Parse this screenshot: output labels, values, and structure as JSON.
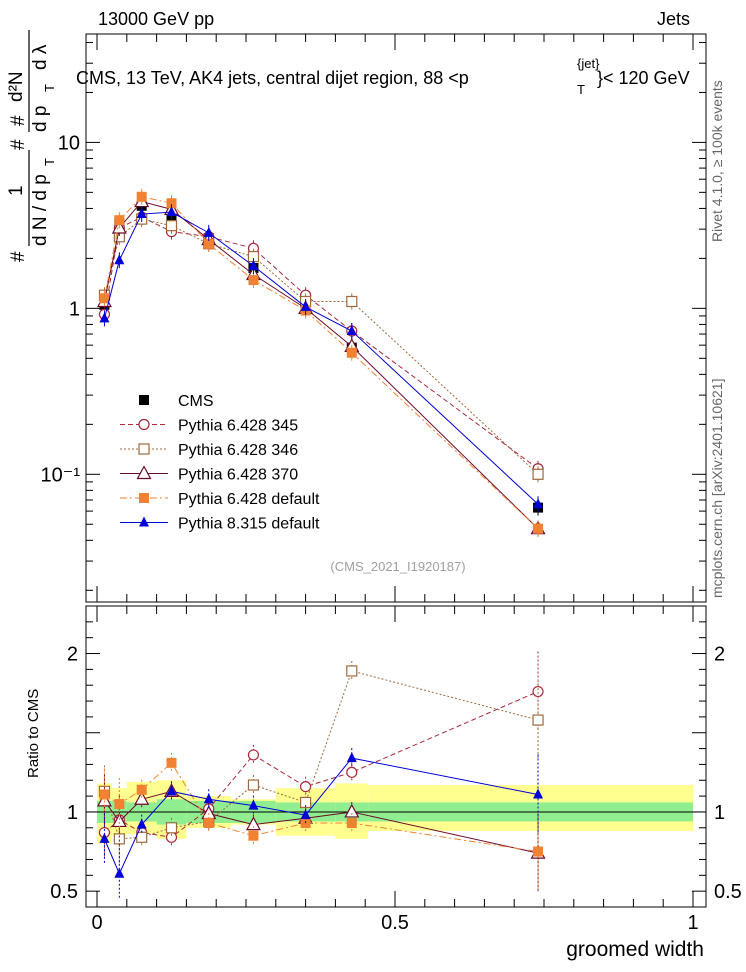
{
  "header": {
    "energy_label": "13000 GeV pp",
    "category_label": "Jets",
    "title_main": "CMS, 13 TeV, AK4 jets, central dijet region, 88 <p",
    "title_sup": "{jet}",
    "title_sub": "T",
    "title_end": "}< 120 GeV",
    "side_rivet": "Rivet 4.1.0, ≥ 100k events",
    "side_site": "mcplots.cern.ch [arXiv:2401.10621]",
    "watermark": "(CMS_2021_I1920187)"
  },
  "ylabel": {
    "hash1": "#",
    "one": "1",
    "dN": "d N / d p",
    "T1": "T",
    "hash2": "#",
    "hash3": "#",
    "d2N": "d²N",
    "dpT": "d p",
    "T2": "T",
    "dlambda": "d λ"
  },
  "chart_data": [
    {
      "type": "line",
      "panel": "main",
      "yscale": "log",
      "xlim": [
        0,
        1
      ],
      "ylim": [
        0.017,
        45
      ],
      "x": [
        0.0125,
        0.0375,
        0.075,
        0.125,
        0.1875,
        0.2625,
        0.35,
        0.4275,
        0.74
      ],
      "yticklabels": [
        "10⁻¹",
        "1",
        "10"
      ],
      "ytick_values": [
        0.1,
        1,
        10
      ],
      "legend": [
        "CMS",
        "Pythia 6.428 345",
        "Pythia 6.428 346",
        "Pythia 6.428 370",
        "Pythia 6.428 default",
        "Pythia 8.315 default"
      ],
      "series": [
        {
          "name": "CMS",
          "color": "#000000",
          "marker": "square-filled",
          "values": [
            1.05,
            3.25,
            4.15,
            3.5,
            2.65,
            1.75,
            1.05,
            0.58,
            0.063
          ]
        },
        {
          "name": "Pythia 6.428 345",
          "color": "#a8283c",
          "marker": "circle-open",
          "values": [
            0.92,
            3.05,
            3.55,
            2.9,
            2.7,
            2.3,
            1.2,
            0.73,
            0.108
          ]
        },
        {
          "name": "Pythia 6.428 346",
          "color": "#a0693c",
          "marker": "square-open",
          "values": [
            1.2,
            2.7,
            3.45,
            3.15,
            2.45,
            2.05,
            1.1,
            1.1,
            0.1
          ]
        },
        {
          "name": "Pythia 6.428 370",
          "color": "#6a0a2a",
          "marker": "triangle-open",
          "values": [
            1.1,
            3.05,
            4.4,
            3.95,
            2.6,
            1.6,
            1.0,
            0.59,
            0.047
          ]
        },
        {
          "name": "Pythia 6.428 default",
          "color": "#f08232",
          "marker": "square-filled",
          "values": [
            1.15,
            3.4,
            4.7,
            4.3,
            2.45,
            1.48,
            0.97,
            0.54,
            0.047
          ]
        },
        {
          "name": "Pythia 8.315 default",
          "color": "#0000d8",
          "marker": "triangle-filled",
          "values": [
            0.87,
            1.95,
            3.7,
            3.8,
            2.85,
            1.8,
            1.02,
            0.73,
            0.066
          ]
        }
      ]
    },
    {
      "type": "line",
      "panel": "ratio",
      "ylabel": "Ratio to CMS",
      "xlabel": "groomed width",
      "xlim": [
        0,
        1
      ],
      "ylim": [
        0.4,
        2.3
      ],
      "xticklabels": [
        "0",
        "0.5",
        "1"
      ],
      "xtick_values": [
        0,
        0.5,
        1
      ],
      "yticklabels": [
        "0.5",
        "1",
        "2"
      ],
      "ytick_values": [
        0.5,
        1,
        2
      ],
      "x": [
        0.0125,
        0.0375,
        0.075,
        0.125,
        0.1875,
        0.2625,
        0.35,
        0.4275,
        0.74
      ],
      "bin_edges": [
        0,
        0.025,
        0.05,
        0.1,
        0.15,
        0.225,
        0.3,
        0.4,
        0.455,
        1.0
      ],
      "band_stat": [
        [
          0.93,
          1.07
        ],
        [
          0.93,
          1.07
        ],
        [
          0.94,
          1.06
        ],
        [
          0.92,
          1.08
        ],
        [
          0.93,
          1.07
        ],
        [
          0.93,
          1.07
        ],
        [
          0.94,
          1.06
        ],
        [
          0.94,
          1.06
        ],
        [
          0.94,
          1.06
        ]
      ],
      "band_total": [
        [
          0.8,
          1.18
        ],
        [
          0.85,
          1.15
        ],
        [
          0.86,
          1.19
        ],
        [
          0.83,
          1.2
        ],
        [
          0.9,
          1.1
        ],
        [
          0.92,
          1.08
        ],
        [
          0.85,
          1.15
        ],
        [
          0.83,
          1.18
        ],
        [
          0.88,
          1.17
        ]
      ],
      "band_colors": {
        "stat": "#90ee90",
        "total": "#ffff90"
      },
      "series": [
        {
          "name": "Pythia 6.428 345",
          "values": [
            0.87,
            0.95,
            0.87,
            0.84,
            1.02,
            1.36,
            1.16,
            1.25,
            1.76
          ]
        },
        {
          "name": "Pythia 6.428 346",
          "values": [
            1.13,
            0.83,
            0.84,
            0.9,
            0.94,
            1.17,
            1.06,
            1.89,
            1.58
          ]
        },
        {
          "name": "Pythia 6.428 370",
          "values": [
            1.07,
            0.94,
            1.08,
            1.13,
            0.99,
            0.92,
            0.96,
            1.0,
            0.74
          ]
        },
        {
          "name": "Pythia 6.428 default",
          "values": [
            1.11,
            1.05,
            1.14,
            1.31,
            0.93,
            0.85,
            0.93,
            0.93,
            0.75
          ]
        },
        {
          "name": "Pythia 8.315 default",
          "values": [
            0.83,
            0.61,
            0.92,
            1.13,
            1.08,
            1.04,
            0.98,
            1.34,
            1.11
          ]
        }
      ]
    }
  ]
}
